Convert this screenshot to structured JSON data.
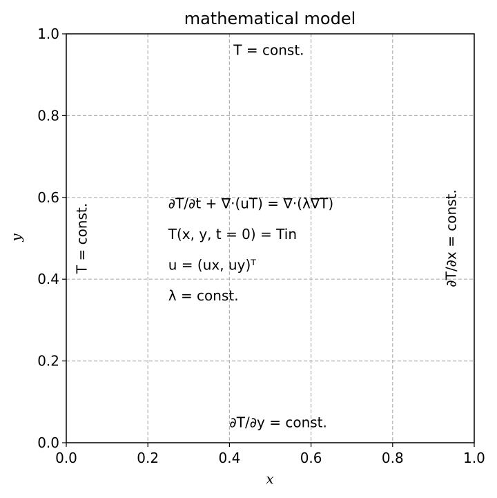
{
  "chart_data": {
    "type": "scatter",
    "title": "mathematical model",
    "xlabel": "x",
    "ylabel": "y",
    "xlim": [
      0.0,
      1.0
    ],
    "ylim": [
      0.0,
      1.0
    ],
    "grid": true,
    "xticks": [
      "0.0",
      "0.2",
      "0.4",
      "0.6",
      "0.8",
      "1.0"
    ],
    "yticks": [
      "0.0",
      "0.2",
      "0.4",
      "0.6",
      "0.8",
      "1.0"
    ],
    "annotations": [
      {
        "id": "top-boundary",
        "x": 0.41,
        "y": 0.96,
        "rotation": 0,
        "text": "T = const."
      },
      {
        "id": "left-boundary",
        "x": 0.05,
        "y": 0.5,
        "rotation": -90,
        "text": "T = const."
      },
      {
        "id": "right-boundary",
        "x": 0.955,
        "y": 0.5,
        "rotation": -90,
        "text": "∂T/∂x = const."
      },
      {
        "id": "bottom-boundary",
        "x": 0.4,
        "y": 0.05,
        "rotation": 0,
        "text": "∂T/∂y = const."
      },
      {
        "id": "equation-heat",
        "x": 0.25,
        "y": 0.585,
        "rotation": 0,
        "text": "∂T/∂t + ∇·(uT) = ∇·(λ∇T)"
      },
      {
        "id": "equation-initial",
        "x": 0.25,
        "y": 0.51,
        "rotation": 0,
        "text": "T(x, y, t = 0) = Tin"
      },
      {
        "id": "equation-velocity",
        "x": 0.25,
        "y": 0.435,
        "rotation": 0,
        "text": "u = (ux, uy)ᵀ"
      },
      {
        "id": "equation-lambda",
        "x": 0.25,
        "y": 0.36,
        "rotation": 0,
        "text": "λ = const."
      }
    ]
  },
  "colors": {
    "axes": "#000000",
    "grid": "#b0b0b0"
  }
}
